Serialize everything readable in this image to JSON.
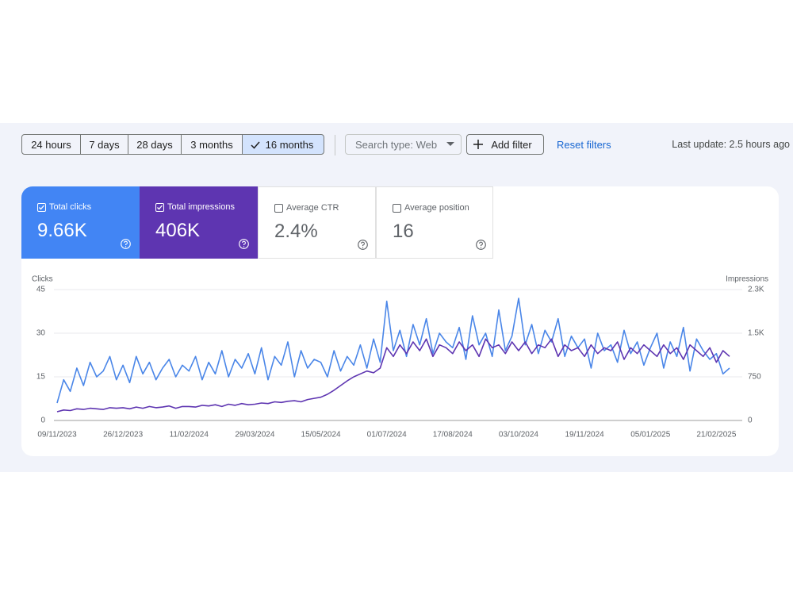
{
  "toolbar": {
    "ranges": [
      "24 hours",
      "7 days",
      "28 days",
      "3 months",
      "16 months"
    ],
    "search_type": "Search type: Web",
    "add_filter": "Add filter",
    "reset_filters": "Reset filters",
    "last_update": "Last update: 2.5 hours ago"
  },
  "metrics": [
    {
      "label": "Total clicks",
      "value": "9.66K"
    },
    {
      "label": "Total impressions",
      "value": "406K"
    },
    {
      "label": "Average CTR",
      "value": "2.4%"
    },
    {
      "label": "Average position",
      "value": "16"
    }
  ],
  "chart_data": {
    "type": "line",
    "categories": [
      "09/11/2023",
      null,
      null,
      null,
      null,
      null,
      null,
      null,
      null,
      null,
      "26/12/2023",
      null,
      null,
      null,
      null,
      null,
      null,
      null,
      null,
      null,
      "11/02/2024",
      null,
      null,
      null,
      null,
      null,
      null,
      null,
      null,
      null,
      "29/03/2024",
      null,
      null,
      null,
      null,
      null,
      null,
      null,
      null,
      null,
      "15/05/2024",
      null,
      null,
      null,
      null,
      null,
      null,
      null,
      null,
      null,
      "01/07/2024",
      null,
      null,
      null,
      null,
      null,
      null,
      null,
      null,
      null,
      "17/08/2024",
      null,
      null,
      null,
      null,
      null,
      null,
      null,
      null,
      null,
      "03/10/2024",
      null,
      null,
      null,
      null,
      null,
      null,
      null,
      null,
      null,
      "19/11/2024",
      null,
      null,
      null,
      null,
      null,
      null,
      null,
      null,
      null,
      "05/01/2025",
      null,
      null,
      null,
      null,
      null,
      null,
      null,
      null,
      null,
      "21/02/2025",
      null,
      null
    ],
    "series": [
      {
        "name": "Clicks",
        "color": "#4a86e8",
        "values": [
          6,
          14,
          10,
          18,
          12,
          20,
          15,
          17,
          22,
          14,
          19,
          13,
          22,
          16,
          20,
          14,
          18,
          21,
          15,
          19,
          17,
          22,
          14,
          20,
          16,
          24,
          15,
          21,
          18,
          23,
          16,
          25,
          14,
          22,
          19,
          27,
          15,
          24,
          18,
          21,
          20,
          15,
          24,
          17,
          22,
          19,
          26,
          18,
          28,
          20,
          41,
          24,
          31,
          22,
          33,
          26,
          35,
          23,
          30,
          27,
          25,
          32,
          21,
          36,
          26,
          30,
          22,
          38,
          24,
          29,
          42,
          26,
          33,
          23,
          31,
          27,
          35,
          22,
          29,
          25,
          28,
          18,
          30,
          24,
          26,
          20,
          31,
          23,
          27,
          19,
          25,
          30,
          18,
          27,
          22,
          32,
          17,
          28,
          24,
          21,
          23,
          16,
          18
        ]
      },
      {
        "name": "Impressions",
        "color": "#5e35b1",
        "axis": "y2",
        "values": [
          150,
          180,
          170,
          200,
          190,
          210,
          200,
          190,
          220,
          210,
          220,
          200,
          230,
          210,
          240,
          220,
          230,
          250,
          210,
          240,
          240,
          230,
          260,
          250,
          270,
          240,
          280,
          260,
          290,
          270,
          280,
          300,
          290,
          320,
          310,
          330,
          340,
          320,
          360,
          380,
          400,
          450,
          520,
          600,
          680,
          750,
          800,
          850,
          820,
          900,
          1250,
          1100,
          1300,
          1150,
          1350,
          1200,
          1400,
          1100,
          1300,
          1250,
          1150,
          1350,
          1200,
          1300,
          1100,
          1400,
          1250,
          1300,
          1150,
          1350,
          1200,
          1350,
          1150,
          1300,
          1250,
          1400,
          1100,
          1300,
          1200,
          1250,
          1100,
          1300,
          1150,
          1250,
          1200,
          1350,
          1050,
          1250,
          1150,
          1300,
          1200,
          1100,
          1300,
          1150,
          1250,
          1050,
          1300,
          1200,
          1100,
          1250,
          1000,
          1200,
          1100
        ]
      }
    ],
    "ylim": [
      0,
      45
    ],
    "yticks": [
      0,
      15,
      30,
      45
    ],
    "y2lim": [
      0,
      2250
    ],
    "y2ticks": [
      0,
      750,
      {
        "value": 1500,
        "label": "1.5K"
      },
      {
        "value": 2250,
        "label": "2.3K"
      }
    ],
    "grid": true
  }
}
